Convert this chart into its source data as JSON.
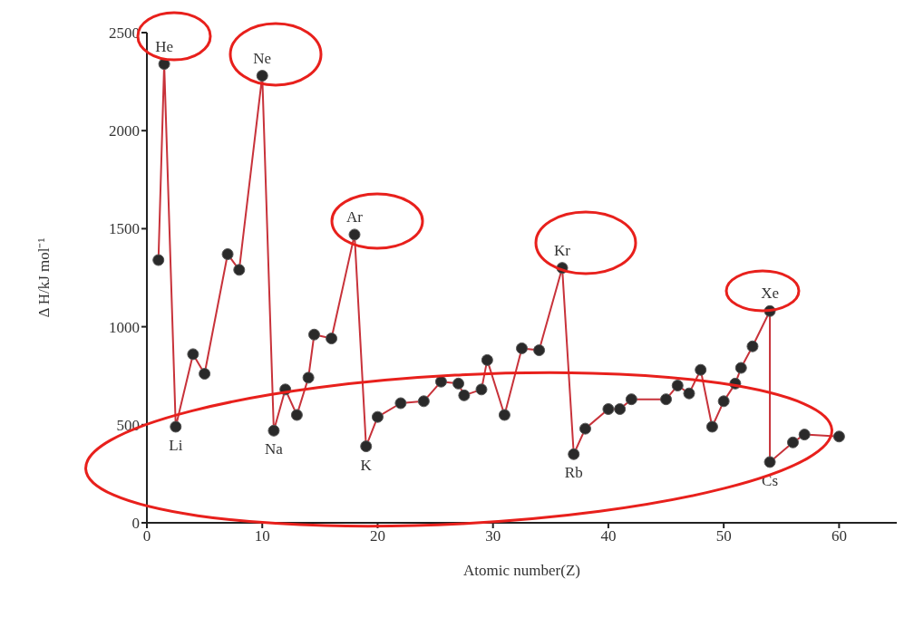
{
  "chart_data": {
    "type": "line",
    "xlabel": "Atomic number(Z)",
    "ylabel": "Δ H/kJ mol⁻¹",
    "x": [
      1,
      1.5,
      2.5,
      4,
      5,
      7,
      8,
      10,
      11,
      12,
      13,
      14,
      14.5,
      16,
      18,
      19,
      20,
      22,
      24,
      25.5,
      27,
      27.5,
      29,
      29.5,
      31,
      32.5,
      34,
      36,
      37,
      38,
      40,
      41,
      42,
      45,
      46,
      47,
      48,
      49,
      50,
      51,
      51.5,
      52.5,
      54,
      54,
      56,
      57,
      60
    ],
    "series": [
      {
        "color": "#c8323a",
        "values": [
          1340,
          2340,
          490,
          860,
          760,
          1370,
          1290,
          2280,
          470,
          680,
          550,
          740,
          960,
          940,
          1470,
          390,
          540,
          610,
          620,
          720,
          710,
          650,
          680,
          830,
          550,
          890,
          880,
          1300,
          350,
          480,
          580,
          580,
          630,
          630,
          700,
          660,
          780,
          490,
          620,
          710,
          790,
          900,
          1080,
          310,
          410,
          450,
          440
        ]
      }
    ],
    "xlim": [
      0,
      65
    ],
    "xticks": [
      0,
      10,
      20,
      30,
      40,
      50,
      60
    ],
    "ylim": [
      0,
      2500
    ],
    "yticks": [
      0,
      500,
      1000,
      1500,
      2000,
      2500
    ],
    "grid": false,
    "legend": false,
    "marker": "circle",
    "line_style": "solid",
    "annotations": [
      {
        "text": "He",
        "x": 1.5,
        "y": 2340
      },
      {
        "text": "Li",
        "x": 2.5,
        "y": 490
      },
      {
        "text": "Ne",
        "x": 10,
        "y": 2280
      },
      {
        "text": "Na",
        "x": 11,
        "y": 470
      },
      {
        "text": "Ar",
        "x": 18,
        "y": 1470
      },
      {
        "text": "K",
        "x": 19,
        "y": 390
      },
      {
        "text": "Kr",
        "x": 36,
        "y": 1300
      },
      {
        "text": "Rb",
        "x": 37,
        "y": 350
      },
      {
        "text": "Xe",
        "x": 54,
        "y": 1080
      },
      {
        "text": "Cs",
        "x": 54,
        "y": 310
      }
    ]
  }
}
